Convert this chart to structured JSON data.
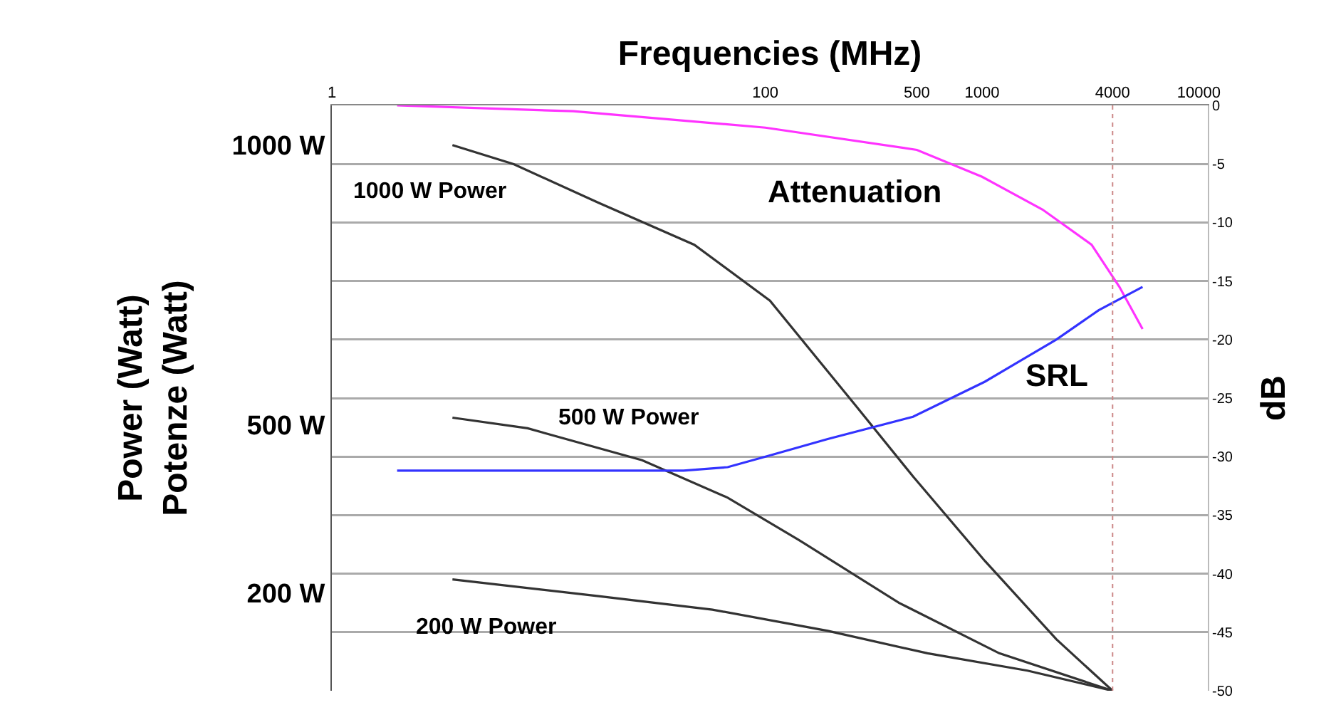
{
  "chart_data": {
    "type": "line",
    "xlabel": "Frequencies (MHz)",
    "ylabel": "Power (Watt)\nPotenze (Watt)",
    "y2label": "dB",
    "log": "x",
    "grid": "y",
    "legend": false,
    "marker": "none",
    "line_style": "solid",
    "xlim": [
      1,
      11000
    ],
    "xticks": [
      1,
      100,
      500,
      1000,
      4000,
      10000
    ],
    "ylim": [
      25,
      1071
    ],
    "yticks": [
      {
        "value": 1000,
        "label": "1000 W"
      },
      {
        "value": 500,
        "label": "500 W"
      },
      {
        "value": 200,
        "label": "200 W"
      }
    ],
    "y2lim": [
      -50,
      0
    ],
    "y2ticks": [
      0,
      -5,
      -10,
      -15,
      -20,
      -25,
      -30,
      -35,
      -40,
      -45,
      -50
    ],
    "series": [
      {
        "name": "1000 W Power",
        "color": "#333333",
        "x": [
          3.6,
          6.9,
          17,
          47,
          105,
          263,
          480,
          1030,
          2200,
          4000
        ],
        "values": [
          1000,
          966,
          897,
          822,
          722,
          533,
          408,
          257,
          117,
          25
        ]
      },
      {
        "name": "500 W Power",
        "color": "#333333",
        "x": [
          3.6,
          8,
          27,
          67,
          142,
          414,
          1200,
          4000
        ],
        "values": [
          513,
          494,
          437,
          370,
          295,
          182,
          92,
          25
        ]
      },
      {
        "name": "200 W Power",
        "color": "#333333",
        "x": [
          3.6,
          17,
          57,
          194,
          560,
          1620,
          4000
        ],
        "values": [
          224,
          194,
          170,
          132,
          92,
          61,
          25
        ]
      },
      {
        "name": "Attenuation",
        "color": "#ff33ff",
        "axis": "y2",
        "x": [
          2,
          13,
          100,
          500,
          1000,
          1900,
          3200,
          4300,
          5500
        ],
        "values": [
          0,
          -0.5,
          -1.9,
          -3.8,
          -6.1,
          -8.9,
          -11.9,
          -15.5,
          -19.1
        ]
      },
      {
        "name": "SRL",
        "color": "#3333ff",
        "axis": "y2",
        "x": [
          2,
          42,
          67,
          105,
          194,
          480,
          1030,
          2200,
          3450,
          5500
        ],
        "values": [
          -31.2,
          -31.2,
          -30.9,
          -29.9,
          -28.5,
          -26.6,
          -23.6,
          -20.0,
          -17.5,
          -15.5
        ]
      }
    ],
    "ref_lines": [
      {
        "axis": "x",
        "value": 4000,
        "color": "#cc8888",
        "line_style": "dotted"
      }
    ]
  }
}
